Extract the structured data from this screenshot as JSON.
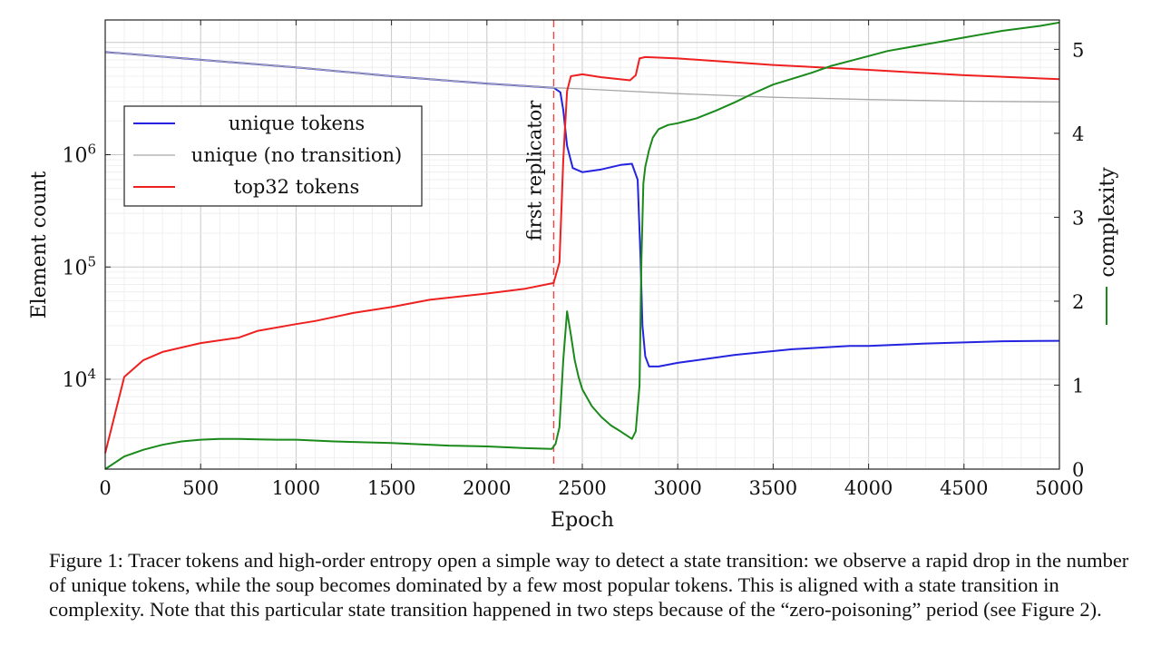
{
  "chart_data": {
    "type": "line",
    "title": "",
    "xlabel": "Epoch",
    "ylabel_left": "Element count",
    "ylabel_right": "complexity",
    "xlim": [
      0,
      5000
    ],
    "ylim_left_log10": [
      3.2,
      7.2
    ],
    "ylim_right": [
      0,
      5.35
    ],
    "x_ticks": [
      0,
      500,
      1000,
      1500,
      2000,
      2500,
      3000,
      3500,
      4000,
      4500,
      5000
    ],
    "y_left_ticks": [
      {
        "exp": 4,
        "base": "10",
        "sup": "4"
      },
      {
        "exp": 5,
        "base": "10",
        "sup": "5"
      },
      {
        "exp": 6,
        "base": "10",
        "sup": "6"
      }
    ],
    "y_right_ticks": [
      0,
      1,
      2,
      3,
      4,
      5
    ],
    "grid": true,
    "legend": {
      "position": "upper-left",
      "entries": [
        {
          "label": "unique tokens",
          "color": "#2424e0"
        },
        {
          "label": "unique (no transition)",
          "color": "#a8a8a8"
        },
        {
          "label": "top32 tokens",
          "color": "#ee2020"
        }
      ]
    },
    "annotation": {
      "label": "first replicator",
      "x": 2350,
      "color": "#ee4444"
    },
    "series": [
      {
        "name": "unique tokens",
        "axis": "left",
        "color": "#2424e0",
        "x": [
          0,
          500,
          1000,
          1500,
          2000,
          2350,
          2385,
          2400,
          2420,
          2450,
          2500,
          2600,
          2700,
          2760,
          2790,
          2805,
          2815,
          2830,
          2850,
          2900,
          3000,
          3300,
          3600,
          3900,
          4000,
          4300,
          4700,
          5000
        ],
        "y": [
          8200000,
          7000000,
          6000000,
          5000000,
          4300000,
          3950000,
          3600000,
          2500000,
          1200000,
          760000,
          700000,
          740000,
          810000,
          830000,
          600000,
          120000,
          30000,
          16000,
          13000,
          13000,
          14000,
          16500,
          18500,
          19800,
          19800,
          20800,
          21800,
          22000
        ]
      },
      {
        "name": "unique (no transition)",
        "axis": "left",
        "color": "#a8a8a8",
        "x": [
          0,
          500,
          1000,
          1500,
          2000,
          2350,
          2500,
          3000,
          3500,
          4000,
          4500,
          5000
        ],
        "y": [
          8200000,
          7000000,
          6000000,
          5000000,
          4300000,
          3950000,
          3850000,
          3500000,
          3250000,
          3100000,
          3000000,
          2950000
        ]
      },
      {
        "name": "top32 tokens",
        "axis": "left",
        "color": "#ee2020",
        "x": [
          0,
          100,
          200,
          300,
          500,
          700,
          800,
          1000,
          1100,
          1300,
          1500,
          1700,
          2000,
          2200,
          2350,
          2380,
          2400,
          2420,
          2440,
          2500,
          2600,
          2750,
          2780,
          2800,
          2830,
          3000,
          3500,
          4000,
          4500,
          5000
        ],
        "y": [
          2200,
          10500,
          14800,
          17500,
          21000,
          23500,
          27000,
          31000,
          33000,
          39000,
          44000,
          51000,
          58000,
          64000,
          72000,
          110000,
          900000,
          3700000,
          5000000,
          5200000,
          4900000,
          4600000,
          5100000,
          7200000,
          7400000,
          7200000,
          6300000,
          5700000,
          5100000,
          4700000
        ]
      },
      {
        "name": "complexity",
        "axis": "right",
        "color": "#1a8a1a",
        "x": [
          0,
          100,
          200,
          300,
          400,
          500,
          600,
          700,
          800,
          900,
          1000,
          1200,
          1500,
          1800,
          2000,
          2200,
          2340,
          2360,
          2380,
          2400,
          2420,
          2440,
          2460,
          2480,
          2500,
          2550,
          2600,
          2650,
          2700,
          2760,
          2780,
          2800,
          2810,
          2820,
          2830,
          2840,
          2850,
          2870,
          2900,
          2950,
          3000,
          3100,
          3200,
          3300,
          3400,
          3500,
          3600,
          3700,
          3800,
          3900,
          4000,
          4100,
          4200,
          4300,
          4400,
          4500,
          4600,
          4700,
          4800,
          4900,
          5000
        ],
        "y": [
          0,
          0.15,
          0.23,
          0.29,
          0.33,
          0.35,
          0.36,
          0.36,
          0.355,
          0.35,
          0.35,
          0.33,
          0.31,
          0.28,
          0.27,
          0.25,
          0.24,
          0.3,
          0.5,
          1.3,
          1.88,
          1.6,
          1.3,
          1.1,
          0.95,
          0.75,
          0.62,
          0.52,
          0.45,
          0.36,
          0.45,
          1.0,
          2.5,
          3.4,
          3.6,
          3.7,
          3.8,
          3.95,
          4.05,
          4.1,
          4.12,
          4.18,
          4.27,
          4.37,
          4.48,
          4.58,
          4.65,
          4.72,
          4.8,
          4.86,
          4.92,
          4.98,
          5.02,
          5.06,
          5.1,
          5.14,
          5.18,
          5.22,
          5.25,
          5.28,
          5.32
        ]
      }
    ]
  },
  "caption": "Figure 1: Tracer tokens and high-order entropy open a simple way to detect a state transition: we observe a rapid drop in the number of unique tokens, while the soup becomes dominated by a few most popular tokens. This is aligned with a state transition in complexity. Note that this particular state transition happened in two steps because of the “zero-poisoning” period (see Figure 2)."
}
